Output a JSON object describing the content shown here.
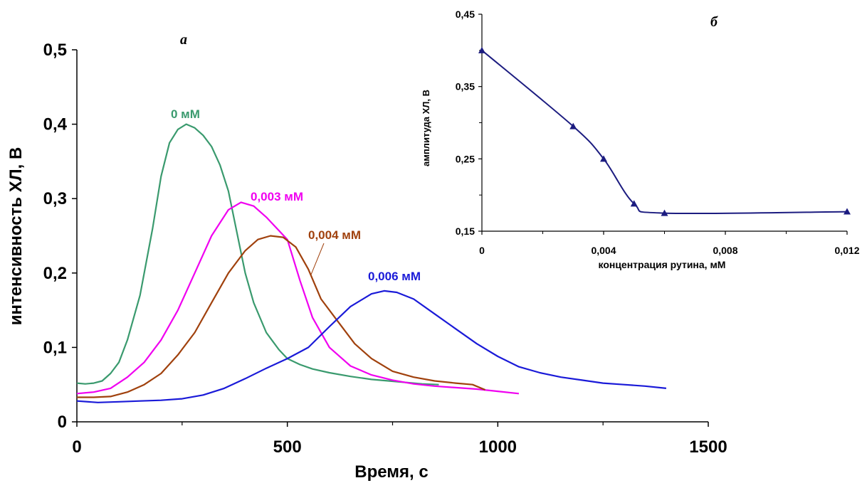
{
  "chart_data": [
    {
      "type": "line",
      "panel_label": "а",
      "xlabel": "Время, с",
      "ylabel": "интенсивность ХЛ, В",
      "xlim": [
        0,
        1500
      ],
      "ylim": [
        0,
        0.5
      ],
      "x_ticks": [
        "0",
        "500",
        "1000",
        "1500"
      ],
      "y_ticks": [
        "0",
        "0,1",
        "0,2",
        "0,3",
        "0,4",
        "0,5"
      ],
      "grid": false,
      "series": [
        {
          "name": "0 мМ",
          "color": "#3a9a6e",
          "x": [
            0,
            20,
            40,
            60,
            80,
            100,
            120,
            150,
            180,
            200,
            220,
            240,
            260,
            280,
            300,
            320,
            340,
            360,
            380,
            400,
            420,
            450,
            480,
            500,
            530,
            560,
            600,
            650,
            700,
            760,
            820,
            860
          ],
          "y": [
            0.052,
            0.051,
            0.052,
            0.055,
            0.065,
            0.08,
            0.11,
            0.17,
            0.26,
            0.33,
            0.375,
            0.393,
            0.4,
            0.395,
            0.385,
            0.37,
            0.345,
            0.31,
            0.255,
            0.2,
            0.16,
            0.12,
            0.097,
            0.085,
            0.077,
            0.071,
            0.066,
            0.061,
            0.057,
            0.054,
            0.051,
            0.05
          ]
        },
        {
          "name": "0,003 мМ",
          "color": "#f000f0",
          "x": [
            0,
            40,
            80,
            120,
            160,
            200,
            240,
            280,
            320,
            360,
            390,
            420,
            450,
            500,
            530,
            560,
            600,
            650,
            700,
            750,
            800,
            850,
            900,
            950,
            1000,
            1050
          ],
          "y": [
            0.038,
            0.04,
            0.045,
            0.06,
            0.08,
            0.11,
            0.15,
            0.2,
            0.25,
            0.285,
            0.295,
            0.29,
            0.275,
            0.245,
            0.19,
            0.14,
            0.1,
            0.075,
            0.063,
            0.056,
            0.051,
            0.048,
            0.046,
            0.044,
            0.041,
            0.038
          ]
        },
        {
          "name": "0,004 мМ",
          "color": "#a0410d",
          "x": [
            0,
            40,
            80,
            120,
            160,
            200,
            240,
            280,
            320,
            360,
            400,
            430,
            460,
            490,
            520,
            550,
            580,
            620,
            660,
            700,
            750,
            800,
            850,
            900,
            940,
            970
          ],
          "y": [
            0.033,
            0.033,
            0.034,
            0.04,
            0.05,
            0.065,
            0.09,
            0.12,
            0.16,
            0.2,
            0.23,
            0.245,
            0.25,
            0.248,
            0.235,
            0.205,
            0.165,
            0.135,
            0.105,
            0.085,
            0.068,
            0.06,
            0.055,
            0.052,
            0.05,
            0.043
          ]
        },
        {
          "name": "0,006 мМ",
          "color": "#1a1ad8",
          "x": [
            0,
            50,
            100,
            150,
            200,
            250,
            300,
            350,
            400,
            450,
            500,
            550,
            600,
            650,
            700,
            730,
            760,
            800,
            850,
            900,
            950,
            1000,
            1050,
            1100,
            1150,
            1200,
            1250,
            1300,
            1350,
            1400
          ],
          "y": [
            0.028,
            0.026,
            0.027,
            0.028,
            0.029,
            0.031,
            0.036,
            0.045,
            0.058,
            0.072,
            0.085,
            0.1,
            0.128,
            0.155,
            0.172,
            0.176,
            0.174,
            0.165,
            0.145,
            0.125,
            0.105,
            0.088,
            0.074,
            0.066,
            0.06,
            0.056,
            0.052,
            0.05,
            0.048,
            0.045
          ]
        }
      ]
    },
    {
      "type": "line",
      "panel_label": "б",
      "xlabel": "концентрация рутина, мМ",
      "ylabel": "амплитуда ХЛ, В",
      "xlim": [
        0,
        0.012
      ],
      "ylim": [
        0.15,
        0.45
      ],
      "x_ticks": [
        "0",
        "0,004",
        "0,008",
        "0,012"
      ],
      "y_ticks": [
        "0,15",
        "0,25",
        "0,35",
        "0,45"
      ],
      "marker": "triangle",
      "color": "#1c1c80",
      "x": [
        0,
        0.003,
        0.004,
        0.005,
        0.006,
        0.012
      ],
      "y": [
        0.4,
        0.295,
        0.25,
        0.188,
        0.175,
        0.177
      ]
    }
  ]
}
